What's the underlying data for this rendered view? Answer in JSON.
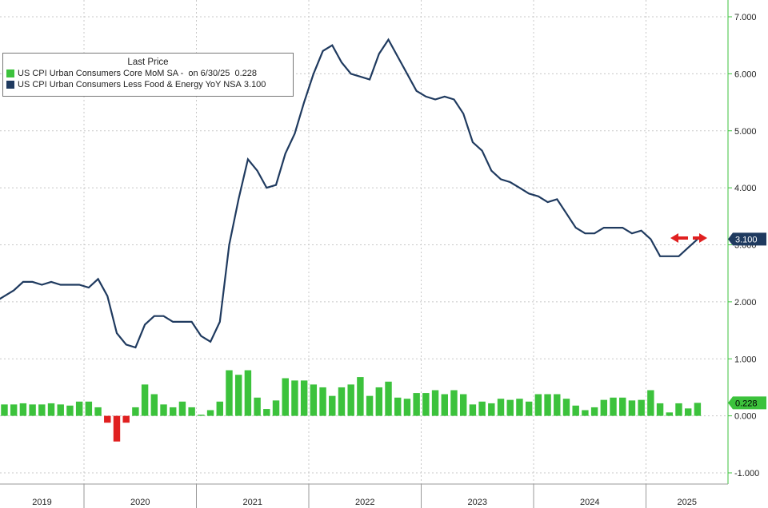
{
  "legend": {
    "title": "Last Price",
    "rows": [
      {
        "label": "US CPI Urban Consumers Core MoM SA -",
        "extra": "on 6/30/25",
        "value": "0.228",
        "color": "#3cc23c"
      },
      {
        "label": "US CPI Urban Consumers Less Food & Energy YoY NSA",
        "extra": "",
        "value": "3.100",
        "color": "#1f3a5f"
      }
    ]
  },
  "chart_data": {
    "type": "line",
    "title": "",
    "xlabel": "",
    "ylabel": "",
    "ylim": [
      -1.0,
      7.0
    ],
    "y_ticks": [
      "-1.000",
      "0.000",
      "1.000",
      "2.000",
      "3.000",
      "4.000",
      "5.000",
      "6.000",
      "7.000"
    ],
    "x_ticks": [
      "2019",
      "2020",
      "2021",
      "2022",
      "2023",
      "2024",
      "2025"
    ],
    "grid": true,
    "legend_position": "top-left",
    "x_start": "2019-01",
    "series": [
      {
        "name": "US CPI Urban Consumers Less Food & Energy YoY NSA",
        "type": "line",
        "color": "#1f3a5f",
        "last_label": "3.100",
        "values": [
          2.05,
          2.1,
          2.0,
          2.1,
          2.2,
          2.35,
          2.35,
          2.3,
          2.35,
          2.3,
          2.3,
          2.3,
          2.25,
          2.4,
          2.1,
          1.45,
          1.25,
          1.2,
          1.6,
          1.75,
          1.75,
          1.65,
          1.65,
          1.65,
          1.4,
          1.3,
          1.65,
          3.0,
          3.8,
          4.5,
          4.3,
          4.0,
          4.05,
          4.6,
          4.95,
          5.5,
          6.0,
          6.4,
          6.5,
          6.2,
          6.0,
          5.95,
          5.9,
          6.35,
          6.6,
          6.3,
          6.0,
          5.7,
          5.6,
          5.55,
          5.6,
          5.55,
          5.3,
          4.8,
          4.65,
          4.3,
          4.15,
          4.1,
          4.0,
          3.9,
          3.85,
          3.75,
          3.8,
          3.55,
          3.3,
          3.2,
          3.2,
          3.3,
          3.3,
          3.3,
          3.2,
          3.25,
          3.1,
          2.8,
          2.8,
          2.8,
          2.95,
          3.1
        ]
      },
      {
        "name": "US CPI Urban Consumers Core MoM SA",
        "type": "bar",
        "color": "#3cc23c",
        "negative_color": "#e02020",
        "last_label": "0.228",
        "values": [
          0.15,
          0.15,
          0.1,
          0.2,
          0.2,
          0.22,
          0.2,
          0.2,
          0.22,
          0.2,
          0.18,
          0.25,
          0.25,
          0.15,
          -0.12,
          -0.45,
          -0.12,
          0.15,
          0.55,
          0.38,
          0.2,
          0.15,
          0.25,
          0.15,
          0.02,
          0.1,
          0.25,
          0.8,
          0.72,
          0.8,
          0.32,
          0.12,
          0.27,
          0.66,
          0.62,
          0.62,
          0.55,
          0.5,
          0.35,
          0.5,
          0.55,
          0.68,
          0.35,
          0.5,
          0.6,
          0.32,
          0.3,
          0.4,
          0.4,
          0.45,
          0.38,
          0.45,
          0.38,
          0.2,
          0.25,
          0.22,
          0.3,
          0.28,
          0.3,
          0.25,
          0.38,
          0.38,
          0.38,
          0.3,
          0.18,
          0.1,
          0.15,
          0.28,
          0.32,
          0.32,
          0.27,
          0.28,
          0.45,
          0.22,
          0.06,
          0.22,
          0.13,
          0.228
        ]
      }
    ]
  }
}
